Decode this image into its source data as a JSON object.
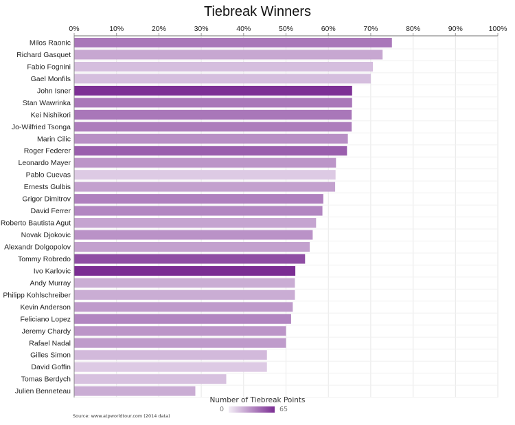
{
  "chart_data": {
    "type": "bar",
    "orientation": "horizontal",
    "title": "Tiebreak Winners",
    "xlim": [
      0,
      100
    ],
    "x_tick_labels": [
      "0%",
      "10%",
      "20%",
      "30%",
      "40%",
      "50%",
      "60%",
      "70%",
      "80%",
      "90%",
      "100%"
    ],
    "grid": "vertical gridlines",
    "categories": [
      "Milos Raonic",
      "Richard Gasquet",
      "Fabio Fognini",
      "Gael Monfils",
      "John Isner",
      "Stan Wawrinka",
      "Kei Nishikori",
      "Jo-Wilfried Tsonga",
      "Marin Cilic",
      "Roger Federer",
      "Leonardo Mayer",
      "Pablo Cuevas",
      "Ernests Gulbis",
      "Grigor Dimitrov",
      "David Ferrer",
      "Roberto Bautista Agut",
      "Novak Djokovic",
      "Alexandr Dolgopolov",
      "Tommy Robredo",
      "Ivo Karlovic",
      "Andy Murray",
      "Philipp Kohlschreiber",
      "Kevin Anderson",
      "Feliciano Lopez",
      "Jeremy Chardy",
      "Rafael Nadal",
      "Gilles Simon",
      "David Goffin",
      "Tomas Berdych",
      "Julien Benneteau"
    ],
    "values": [
      75,
      72.8,
      70.5,
      70,
      65.6,
      65.6,
      65.5,
      65.5,
      64.6,
      64.4,
      61.8,
      61.7,
      61.6,
      58.8,
      58.6,
      57.1,
      56.3,
      55.6,
      54.5,
      52.2,
      52.1,
      52.1,
      51.6,
      51.2,
      50,
      50,
      45.5,
      45.5,
      35.9,
      28.6
    ],
    "tiebreak_points": [
      40,
      24,
      16,
      16,
      64,
      40,
      40,
      38,
      32,
      48,
      30,
      12,
      26,
      37,
      35,
      25,
      31,
      26,
      54,
      65,
      22,
      22,
      28,
      35,
      30,
      28,
      18,
      12,
      15,
      22
    ],
    "color_scale": {
      "title": "Number of Tiebreak Points",
      "min": 0,
      "max": 65,
      "min_label": "0",
      "max_label": "65",
      "min_color": "#f3eef6",
      "max_color": "#7b2d93"
    },
    "source": "Source: www.atpworldtour.com (2014 data)"
  }
}
